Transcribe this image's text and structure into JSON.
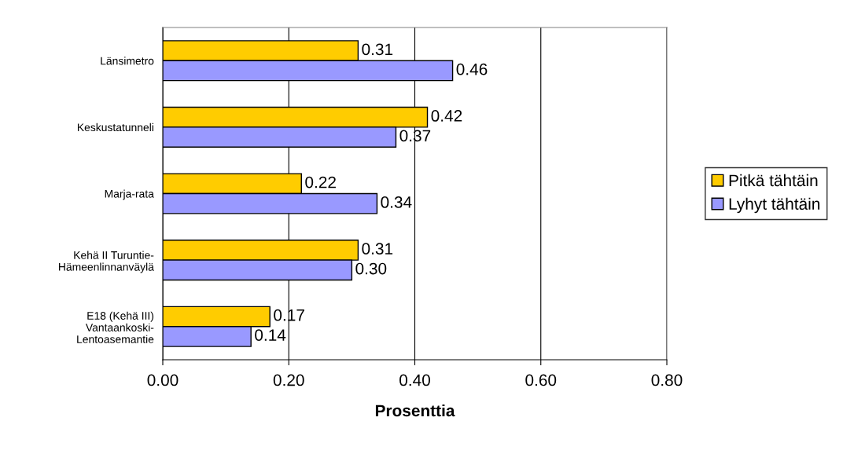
{
  "chart_data": {
    "type": "bar",
    "orientation": "horizontal",
    "xlabel": "Prosenttia",
    "categories": [
      "Länsimetro",
      "Keskustatunneli",
      "Marja-rata",
      "Kehä II Turuntie-\nHämeenlinnanväylä",
      "E18 (Kehä III)\nVantaankoski-\nLentoasemantie"
    ],
    "series": [
      {
        "name": "Pitkä tähtäin",
        "color": "#ffcc00",
        "values": [
          0.31,
          0.42,
          0.22,
          0.31,
          0.17
        ],
        "value_labels": [
          "0.31",
          "0.42",
          "0.22",
          "0.31",
          "0.17"
        ]
      },
      {
        "name": "Lyhyt tähtäin",
        "color": "#9999ff",
        "values": [
          0.46,
          0.37,
          0.34,
          0.3,
          0.14
        ],
        "value_labels": [
          "0.46",
          "0.37",
          "0.34",
          "0.30",
          "0.14"
        ]
      }
    ],
    "xlim": [
      0,
      0.8
    ],
    "xticks": [
      {
        "value": 0,
        "label": "0.00"
      },
      {
        "value": 0.2,
        "label": "0.20"
      },
      {
        "value": 0.4,
        "label": "0.40"
      },
      {
        "value": 0.6,
        "label": "0.60"
      },
      {
        "value": 0.8,
        "label": "0.80"
      }
    ],
    "grid": "x",
    "legend": "right"
  }
}
